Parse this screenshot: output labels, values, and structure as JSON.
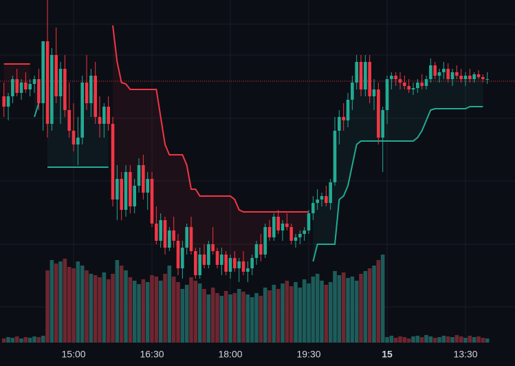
{
  "chart_data": {
    "type": "candlestick",
    "ohlc": [
      [
        360,
        380,
        330,
        345
      ],
      [
        345,
        365,
        325,
        360
      ],
      [
        360,
        390,
        350,
        385
      ],
      [
        385,
        400,
        360,
        365
      ],
      [
        365,
        385,
        355,
        380
      ],
      [
        380,
        395,
        365,
        370
      ],
      [
        370,
        385,
        360,
        378
      ],
      [
        378,
        390,
        365,
        385
      ],
      [
        385,
        400,
        340,
        350
      ],
      [
        350,
        440,
        310,
        440
      ],
      [
        440,
        500,
        300,
        320
      ],
      [
        320,
        430,
        310,
        420
      ],
      [
        420,
        460,
        350,
        360
      ],
      [
        360,
        410,
        320,
        400
      ],
      [
        400,
        420,
        330,
        340
      ],
      [
        340,
        380,
        300,
        310
      ],
      [
        310,
        350,
        280,
        290
      ],
      [
        290,
        330,
        260,
        300
      ],
      [
        300,
        390,
        290,
        380
      ],
      [
        380,
        420,
        340,
        350
      ],
      [
        350,
        400,
        330,
        390
      ],
      [
        390,
        410,
        320,
        330
      ],
      [
        330,
        360,
        300,
        320
      ],
      [
        320,
        350,
        300,
        345
      ],
      [
        345,
        360,
        310,
        320
      ],
      [
        320,
        330,
        200,
        210
      ],
      [
        210,
        260,
        180,
        240
      ],
      [
        240,
        250,
        180,
        195
      ],
      [
        195,
        260,
        185,
        250
      ],
      [
        250,
        260,
        190,
        200
      ],
      [
        200,
        240,
        190,
        230
      ],
      [
        230,
        270,
        220,
        260
      ],
      [
        260,
        275,
        210,
        220
      ],
      [
        220,
        250,
        195,
        240
      ],
      [
        240,
        250,
        170,
        175
      ],
      [
        175,
        200,
        145,
        150
      ],
      [
        150,
        190,
        140,
        180
      ],
      [
        180,
        185,
        130,
        140
      ],
      [
        140,
        170,
        135,
        165
      ],
      [
        165,
        185,
        140,
        150
      ],
      [
        150,
        160,
        100,
        110
      ],
      [
        110,
        150,
        95,
        140
      ],
      [
        140,
        175,
        130,
        170
      ],
      [
        170,
        185,
        130,
        135
      ],
      [
        135,
        140,
        95,
        100
      ],
      [
        100,
        140,
        95,
        130
      ],
      [
        130,
        145,
        110,
        115
      ],
      [
        115,
        150,
        110,
        145
      ],
      [
        145,
        170,
        130,
        135
      ],
      [
        135,
        140,
        110,
        115
      ],
      [
        115,
        140,
        100,
        130
      ],
      [
        130,
        135,
        100,
        105
      ],
      [
        105,
        130,
        95,
        125
      ],
      [
        125,
        135,
        105,
        110
      ],
      [
        110,
        125,
        90,
        120
      ],
      [
        120,
        135,
        100,
        105
      ],
      [
        105,
        120,
        90,
        110
      ],
      [
        110,
        130,
        100,
        125
      ],
      [
        125,
        150,
        115,
        145
      ],
      [
        145,
        160,
        120,
        130
      ],
      [
        130,
        175,
        125,
        170
      ],
      [
        170,
        180,
        150,
        155
      ],
      [
        155,
        190,
        150,
        185
      ],
      [
        185,
        195,
        160,
        165
      ],
      [
        165,
        180,
        150,
        175
      ],
      [
        175,
        190,
        165,
        170
      ],
      [
        170,
        175,
        145,
        150
      ],
      [
        150,
        160,
        140,
        155
      ],
      [
        155,
        165,
        145,
        160
      ],
      [
        160,
        170,
        150,
        165
      ],
      [
        165,
        195,
        160,
        190
      ],
      [
        190,
        215,
        180,
        205
      ],
      [
        205,
        225,
        195,
        210
      ],
      [
        210,
        220,
        200,
        215
      ],
      [
        215,
        230,
        200,
        205
      ],
      [
        205,
        240,
        195,
        235
      ],
      [
        235,
        330,
        230,
        310
      ],
      [
        310,
        340,
        290,
        330
      ],
      [
        330,
        350,
        310,
        325
      ],
      [
        325,
        365,
        315,
        355
      ],
      [
        355,
        390,
        340,
        380
      ],
      [
        380,
        420,
        370,
        410
      ],
      [
        410,
        420,
        360,
        370
      ],
      [
        370,
        420,
        360,
        410
      ],
      [
        410,
        420,
        350,
        360
      ],
      [
        360,
        385,
        340,
        370
      ],
      [
        370,
        380,
        290,
        300
      ],
      [
        300,
        345,
        250,
        340
      ],
      [
        340,
        390,
        320,
        385
      ],
      [
        385,
        395,
        370,
        390
      ],
      [
        390,
        395,
        375,
        385
      ],
      [
        385,
        395,
        370,
        380
      ],
      [
        380,
        390,
        370,
        375
      ],
      [
        375,
        385,
        365,
        370
      ],
      [
        370,
        380,
        362,
        372
      ],
      [
        372,
        385,
        365,
        380
      ],
      [
        380,
        392,
        370,
        375
      ],
      [
        375,
        390,
        370,
        385
      ],
      [
        385,
        415,
        380,
        405
      ],
      [
        405,
        410,
        385,
        390
      ],
      [
        390,
        400,
        380,
        395
      ],
      [
        395,
        410,
        385,
        400
      ],
      [
        400,
        408,
        380,
        385
      ],
      [
        385,
        400,
        375,
        395
      ],
      [
        395,
        405,
        385,
        390
      ],
      [
        390,
        400,
        380,
        385
      ],
      [
        385,
        395,
        375,
        390
      ],
      [
        390,
        400,
        380,
        385
      ],
      [
        385,
        395,
        380,
        392
      ],
      [
        392,
        398,
        385,
        388
      ],
      [
        388,
        392,
        380,
        385
      ],
      [
        385,
        395,
        378,
        385
      ]
    ],
    "volume": [
      6,
      8,
      7,
      9,
      6,
      8,
      7,
      9,
      8,
      10,
      105,
      120,
      115,
      118,
      122,
      110,
      108,
      118,
      112,
      105,
      100,
      98,
      95,
      102,
      92,
      100,
      120,
      112,
      105,
      95,
      90,
      85,
      92,
      88,
      98,
      96,
      90,
      100,
      112,
      96,
      88,
      78,
      84,
      95,
      90,
      86,
      78,
      70,
      80,
      72,
      68,
      75,
      70,
      72,
      78,
      74,
      70,
      66,
      72,
      68,
      80,
      76,
      84,
      78,
      86,
      90,
      82,
      88,
      80,
      92,
      86,
      96,
      100,
      90,
      84,
      88,
      104,
      98,
      102,
      94,
      96,
      90,
      100,
      104,
      108,
      112,
      120,
      128,
      8,
      10,
      7,
      9,
      8,
      6,
      9,
      10,
      8,
      11,
      9,
      7,
      8,
      10,
      9,
      8,
      11,
      9,
      7,
      10,
      8,
      9,
      7,
      6
    ],
    "upper": [
      407,
      407,
      407,
      407,
      407,
      407,
      407,
      null,
      null,
      null,
      null,
      null,
      null,
      null,
      null,
      null,
      null,
      null,
      null,
      null,
      null,
      null,
      null,
      null,
      null,
      463,
      410,
      380,
      378,
      370,
      370,
      370,
      370,
      370,
      370,
      370,
      330,
      290,
      275,
      275,
      275,
      275,
      260,
      225,
      225,
      215,
      215,
      215,
      215,
      215,
      215,
      215,
      215,
      210,
      195,
      192,
      192,
      192,
      192,
      192,
      192,
      192,
      192,
      192,
      192,
      192,
      192,
      192,
      192,
      192,
      192,
      null,
      null,
      null,
      null,
      null,
      null,
      null,
      null,
      null,
      null,
      null,
      null,
      null,
      null,
      null,
      null,
      null,
      null,
      null,
      null,
      null,
      null,
      null,
      null,
      null,
      null,
      null,
      null,
      null,
      null,
      null,
      null,
      null,
      null,
      null,
      null,
      null,
      null,
      null,
      null,
      null
    ],
    "lower": [
      null,
      null,
      null,
      null,
      null,
      null,
      null,
      330,
      350,
      null,
      257,
      257,
      257,
      257,
      257,
      257,
      257,
      257,
      257,
      257,
      257,
      257,
      257,
      257,
      257,
      null,
      null,
      null,
      null,
      null,
      null,
      null,
      null,
      null,
      null,
      null,
      null,
      null,
      null,
      null,
      null,
      null,
      null,
      null,
      null,
      null,
      null,
      null,
      null,
      null,
      null,
      null,
      null,
      null,
      null,
      null,
      null,
      null,
      null,
      null,
      null,
      null,
      null,
      null,
      null,
      null,
      null,
      null,
      null,
      null,
      null,
      120,
      145,
      145,
      145,
      145,
      145,
      210,
      215,
      230,
      260,
      290,
      295,
      295,
      295,
      295,
      295,
      295,
      295,
      295,
      295,
      295,
      295,
      295,
      295,
      300,
      310,
      325,
      340,
      342,
      342,
      342,
      342,
      342,
      342,
      342,
      342,
      345,
      345,
      345,
      345,
      null
    ],
    "price_line": 382,
    "ylim": [
      0,
      500
    ],
    "vol_ylim": [
      0,
      150
    ],
    "xticks": [
      {
        "value": 16,
        "label": "15:00"
      },
      {
        "value": 34,
        "label": "16:30"
      },
      {
        "value": 52,
        "label": "18:00"
      },
      {
        "value": 70,
        "label": "19:30"
      },
      {
        "value": 88,
        "label": "15"
      },
      {
        "value": 106,
        "label": "13:30"
      }
    ],
    "colors": {
      "up": "#22ab94",
      "down": "#f23645",
      "up_volume": "#1d5c5a",
      "down_volume": "#6e2630",
      "upper": "#f23645",
      "lower": "#22ab94"
    },
    "grid": true
  }
}
